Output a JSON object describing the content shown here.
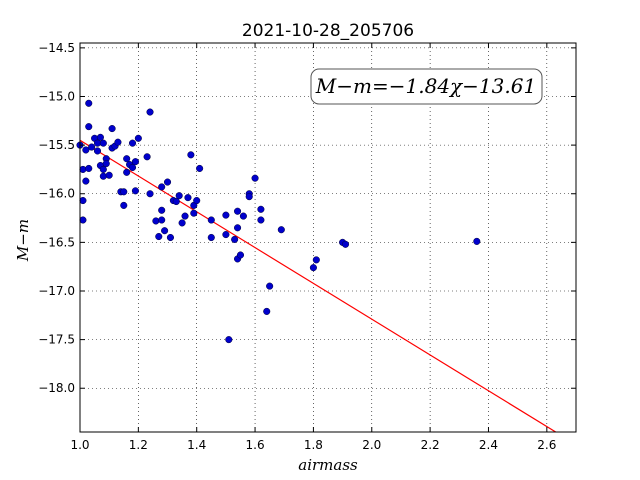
{
  "chart_data": {
    "type": "scatter",
    "title": "2021-10-28_205706",
    "xlabel": "airmass",
    "ylabel": "M−m",
    "xlim": [
      1.0,
      2.7
    ],
    "ylim": [
      -18.45,
      -14.45
    ],
    "y_inverted": true,
    "xticks": [
      1.0,
      1.2,
      1.4,
      1.6,
      1.8,
      2.0,
      2.2,
      2.4,
      2.6
    ],
    "xtick_labels": [
      "1.0",
      "1.2",
      "1.4",
      "1.6",
      "1.8",
      "2.0",
      "2.2",
      "2.4",
      "2.6"
    ],
    "yticks": [
      -14.5,
      -15.0,
      -15.5,
      -16.0,
      -16.5,
      -17.0,
      -17.5,
      -18.0
    ],
    "ytick_labels": [
      "−14.5",
      "−15.0",
      "−15.5",
      "−16.0",
      "−16.5",
      "−17.0",
      "−17.5",
      "−18.0"
    ],
    "grid": true,
    "annotation": "M−m=−1.84χ−13.61",
    "annotation_position": "top-right",
    "fit": {
      "slope": -1.84,
      "intercept": -13.61,
      "color": "#ff0000"
    },
    "point_color": "#0000cc",
    "points": [
      {
        "x": 1.0,
        "y": -15.5
      },
      {
        "x": 1.01,
        "y": -16.07
      },
      {
        "x": 1.01,
        "y": -15.75
      },
      {
        "x": 1.01,
        "y": -16.27
      },
      {
        "x": 1.02,
        "y": -15.87
      },
      {
        "x": 1.02,
        "y": -15.55
      },
      {
        "x": 1.03,
        "y": -15.07
      },
      {
        "x": 1.03,
        "y": -15.31
      },
      {
        "x": 1.03,
        "y": -15.74
      },
      {
        "x": 1.04,
        "y": -15.52
      },
      {
        "x": 1.05,
        "y": -15.43
      },
      {
        "x": 1.06,
        "y": -15.56
      },
      {
        "x": 1.06,
        "y": -15.48
      },
      {
        "x": 1.07,
        "y": -15.42
      },
      {
        "x": 1.07,
        "y": -15.71
      },
      {
        "x": 1.08,
        "y": -15.82
      },
      {
        "x": 1.08,
        "y": -15.48
      },
      {
        "x": 1.08,
        "y": -15.75
      },
      {
        "x": 1.09,
        "y": -15.64
      },
      {
        "x": 1.09,
        "y": -15.69
      },
      {
        "x": 1.1,
        "y": -15.81
      },
      {
        "x": 1.11,
        "y": -15.33
      },
      {
        "x": 1.11,
        "y": -15.53
      },
      {
        "x": 1.12,
        "y": -15.51
      },
      {
        "x": 1.13,
        "y": -15.47
      },
      {
        "x": 1.14,
        "y": -15.98
      },
      {
        "x": 1.15,
        "y": -16.12
      },
      {
        "x": 1.15,
        "y": -15.98
      },
      {
        "x": 1.16,
        "y": -15.64
      },
      {
        "x": 1.16,
        "y": -15.78
      },
      {
        "x": 1.17,
        "y": -15.7
      },
      {
        "x": 1.18,
        "y": -15.73
      },
      {
        "x": 1.18,
        "y": -15.48
      },
      {
        "x": 1.19,
        "y": -15.97
      },
      {
        "x": 1.19,
        "y": -15.67
      },
      {
        "x": 1.2,
        "y": -15.43
      },
      {
        "x": 1.23,
        "y": -15.62
      },
      {
        "x": 1.24,
        "y": -16.0
      },
      {
        "x": 1.24,
        "y": -15.16
      },
      {
        "x": 1.26,
        "y": -16.28
      },
      {
        "x": 1.27,
        "y": -16.44
      },
      {
        "x": 1.28,
        "y": -15.93
      },
      {
        "x": 1.28,
        "y": -16.17
      },
      {
        "x": 1.28,
        "y": -16.27
      },
      {
        "x": 1.29,
        "y": -16.38
      },
      {
        "x": 1.3,
        "y": -15.88
      },
      {
        "x": 1.31,
        "y": -16.45
      },
      {
        "x": 1.32,
        "y": -16.07
      },
      {
        "x": 1.33,
        "y": -16.08
      },
      {
        "x": 1.34,
        "y": -16.02
      },
      {
        "x": 1.35,
        "y": -16.3
      },
      {
        "x": 1.36,
        "y": -16.23
      },
      {
        "x": 1.37,
        "y": -16.04
      },
      {
        "x": 1.38,
        "y": -15.6
      },
      {
        "x": 1.39,
        "y": -16.12
      },
      {
        "x": 1.39,
        "y": -16.2
      },
      {
        "x": 1.4,
        "y": -16.07
      },
      {
        "x": 1.41,
        "y": -15.74
      },
      {
        "x": 1.45,
        "y": -16.27
      },
      {
        "x": 1.45,
        "y": -16.45
      },
      {
        "x": 1.5,
        "y": -16.22
      },
      {
        "x": 1.5,
        "y": -16.42
      },
      {
        "x": 1.51,
        "y": -17.5
      },
      {
        "x": 1.53,
        "y": -16.47
      },
      {
        "x": 1.54,
        "y": -16.18
      },
      {
        "x": 1.54,
        "y": -16.67
      },
      {
        "x": 1.54,
        "y": -16.35
      },
      {
        "x": 1.55,
        "y": -16.63
      },
      {
        "x": 1.56,
        "y": -16.23
      },
      {
        "x": 1.58,
        "y": -16.0
      },
      {
        "x": 1.58,
        "y": -16.03
      },
      {
        "x": 1.6,
        "y": -15.84
      },
      {
        "x": 1.62,
        "y": -16.16
      },
      {
        "x": 1.62,
        "y": -16.27
      },
      {
        "x": 1.64,
        "y": -17.21
      },
      {
        "x": 1.65,
        "y": -16.95
      },
      {
        "x": 1.69,
        "y": -16.37
      },
      {
        "x": 1.8,
        "y": -16.76
      },
      {
        "x": 1.81,
        "y": -16.68
      },
      {
        "x": 1.9,
        "y": -16.5
      },
      {
        "x": 1.91,
        "y": -16.52
      },
      {
        "x": 2.36,
        "y": -16.49
      }
    ]
  }
}
